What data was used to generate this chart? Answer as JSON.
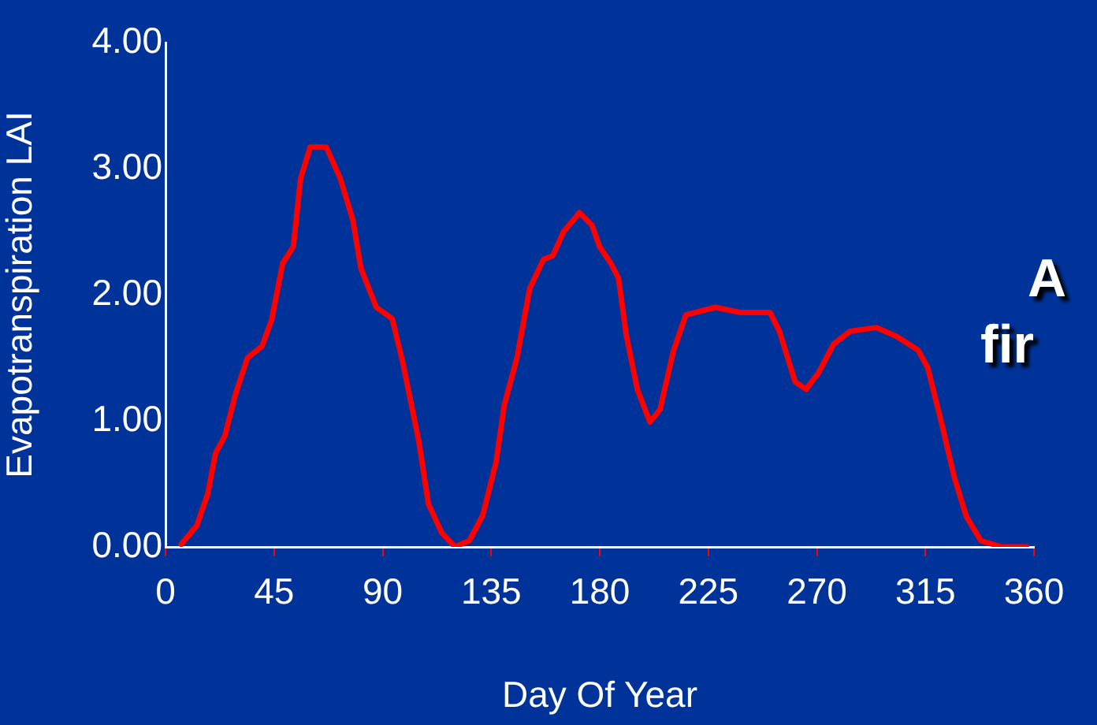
{
  "chart_data": {
    "type": "line",
    "xlabel": "Day Of Year",
    "ylabel": "Evapotranspiration LAI",
    "xlim": [
      0,
      360
    ],
    "xticks": [
      0,
      45,
      90,
      135,
      180,
      225,
      270,
      315,
      360
    ],
    "ylim": [
      0,
      4
    ],
    "yticks": [
      {
        "value": 0,
        "label": "0.00"
      },
      {
        "value": 1,
        "label": "1.00"
      },
      {
        "value": 2,
        "label": "2.00"
      },
      {
        "value": 3,
        "label": "3.00"
      },
      {
        "value": 4,
        "label": "4.00"
      }
    ],
    "grid": false,
    "legend": false,
    "marker": "none",
    "line_style": "solid",
    "annotations": [
      "A",
      "fir"
    ],
    "series": [
      {
        "color": "#ff0000",
        "x": [
          6.5,
          13,
          17.5,
          20.7,
          24.6,
          29,
          34,
          40,
          44,
          48.6,
          53,
          56,
          60,
          66.7,
          72.5,
          77.7,
          81,
          87.4,
          94,
          98.4,
          105,
          109,
          114.6,
          120,
          126,
          131.5,
          137,
          140.5,
          145.7,
          151,
          156.7,
          160.6,
          165,
          171.6,
          176.8,
          180,
          184.6,
          187.8,
          191,
          195.6,
          200.8,
          205,
          210.5,
          215.7,
          228,
          238,
          250.6,
          254.5,
          261,
          265.5,
          270.7,
          277,
          283.7,
          294.7,
          303,
          312,
          316,
          322,
          327,
          332,
          338,
          346.5,
          357
        ],
        "values": [
          0.02,
          0.17,
          0.42,
          0.74,
          0.88,
          1.21,
          1.5,
          1.59,
          1.8,
          2.25,
          2.38,
          2.92,
          3.17,
          3.17,
          2.92,
          2.59,
          2.21,
          1.9,
          1.81,
          1.46,
          0.84,
          0.34,
          0.11,
          0,
          0.05,
          0.25,
          0.67,
          1.13,
          1.5,
          2.05,
          2.28,
          2.31,
          2.5,
          2.65,
          2.55,
          2.38,
          2.25,
          2.13,
          1.68,
          1.25,
          0.99,
          1.09,
          1.55,
          1.84,
          1.9,
          1.86,
          1.86,
          1.71,
          1.31,
          1.25,
          1.38,
          1.61,
          1.71,
          1.74,
          1.67,
          1.56,
          1.42,
          0.96,
          0.55,
          0.24,
          0.05,
          0,
          0
        ]
      }
    ]
  }
}
